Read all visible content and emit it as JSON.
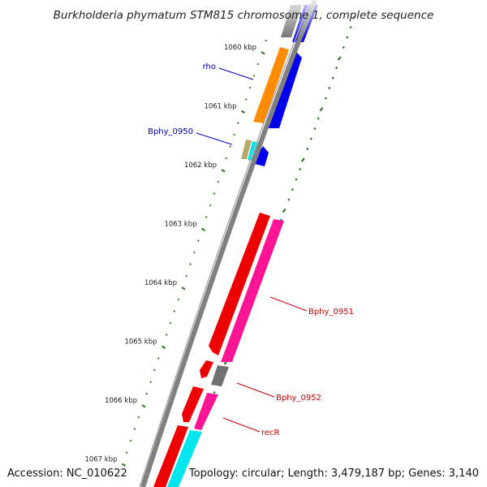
{
  "title": "Burkholderia phymatum STM815 chromosome 1, complete sequence",
  "footer": {
    "accession": "Accession: NC_010622",
    "summary": "Topology: circular; Length: 3,479,187 bp; Genes: 3,140"
  },
  "ticks": [
    {
      "label": "1060 kbp",
      "kbp": 1060
    },
    {
      "label": "1061 kbp",
      "kbp": 1061
    },
    {
      "label": "1062 kbp",
      "kbp": 1062
    },
    {
      "label": "1063 kbp",
      "kbp": 1063
    },
    {
      "label": "1064 kbp",
      "kbp": 1064
    },
    {
      "label": "1065 kbp",
      "kbp": 1065
    },
    {
      "label": "1066 kbp",
      "kbp": 1066
    },
    {
      "label": "1067 kbp",
      "kbp": 1067
    }
  ],
  "gene_labels": [
    {
      "text": "rho",
      "color": "#0000aa"
    },
    {
      "text": "Bphy_0950",
      "color": "#0000aa"
    },
    {
      "text": "Bphy_0951",
      "color": "#cc0000"
    },
    {
      "text": "Bphy_0952",
      "color": "#cc0000"
    },
    {
      "text": "recR",
      "color": "#cc0000"
    }
  ],
  "colors": {
    "backbone": "#808080",
    "ticks": "#2a7a1a",
    "forward_cds": "#0000ee",
    "reverse_cds": "#ee0000",
    "orange_feature": "#ff8c00",
    "pink_feature": "#ff1493",
    "cyan_feature": "#00e5ee",
    "gray_feature": "#707070",
    "tan_feature": "#b5a868"
  }
}
